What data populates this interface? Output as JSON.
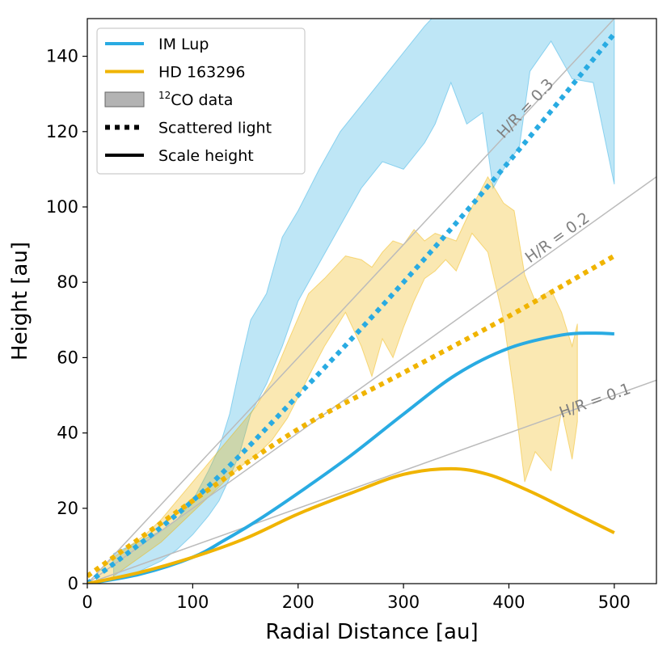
{
  "chart_data": {
    "type": "line",
    "xlabel": "Radial Distance [au]",
    "ylabel": "Height [au]",
    "xlim": [
      0,
      540
    ],
    "ylim": [
      0,
      150
    ],
    "xticks": [
      0,
      100,
      200,
      300,
      400,
      500
    ],
    "yticks": [
      0,
      20,
      40,
      60,
      80,
      100,
      120,
      140
    ],
    "grid": false,
    "legend_position": "top-left",
    "colors": {
      "im_lup": "#29abe2",
      "hd163296": "#f0b400",
      "co_data": "#999999",
      "reference": "#bbbbbb",
      "reference_text": "#808080"
    },
    "legend": [
      {
        "label": "IM Lup",
        "style": "line",
        "color": "#29abe2"
      },
      {
        "label": "HD 163296",
        "style": "line",
        "color": "#f0b400"
      },
      {
        "sup": "12",
        "label": "CO data",
        "style": "patch",
        "color": "#999999"
      },
      {
        "label": "Scattered light",
        "style": "dotted",
        "color": "#000000"
      },
      {
        "label": "Scale height",
        "style": "line",
        "color": "#000000"
      }
    ],
    "reference_lines": [
      {
        "label": "H/R = 0.3",
        "slope": 0.3
      },
      {
        "label": "H/R = 0.2",
        "slope": 0.2
      },
      {
        "label": "H/R = 0.1",
        "slope": 0.1
      }
    ],
    "series": [
      {
        "name": "IM Lup",
        "kind": "scale_height",
        "color": "#29abe2",
        "x": [
          0,
          50,
          100,
          130,
          160,
          200,
          250,
          300,
          350,
          400,
          450,
          480,
          500
        ],
        "y": [
          0,
          2.5,
          7,
          11.5,
          16.5,
          24,
          34,
          45,
          55.5,
          62.5,
          66,
          66.5,
          66.3
        ]
      },
      {
        "name": "HD 163296",
        "kind": "scale_height",
        "color": "#f0b400",
        "x": [
          0,
          50,
          100,
          150,
          200,
          250,
          300,
          345,
          380,
          420,
          460,
          500
        ],
        "y": [
          0,
          3,
          7,
          12,
          18.5,
          24,
          29,
          30.5,
          29,
          24.5,
          19,
          13.5
        ]
      },
      {
        "name": "IM Lup",
        "kind": "scattered_light",
        "color": "#29abe2",
        "x": [
          0,
          100,
          200,
          300,
          400,
          500
        ],
        "y": [
          0,
          22,
          50,
          80,
          112,
          146
        ]
      },
      {
        "name": "HD 163296",
        "kind": "scattered_light",
        "color": "#f0b400",
        "x": [
          0,
          100,
          200,
          300,
          400,
          500
        ],
        "y": [
          2,
          22,
          41,
          56,
          71,
          87
        ]
      },
      {
        "name": "IM Lup",
        "kind": "co_band",
        "color": "#29abe2",
        "x": [
          25,
          40,
          55,
          70,
          85,
          100,
          115,
          125,
          135,
          145,
          155,
          170,
          185,
          200,
          220,
          240,
          260,
          280,
          300,
          320,
          330,
          345,
          360,
          375,
          385,
          395,
          410,
          420,
          440,
          460,
          480,
          500
        ],
        "upper": [
          8,
          10,
          12,
          14,
          17,
          22,
          30,
          36,
          45,
          58,
          70,
          77,
          92,
          99,
          110,
          120,
          127,
          134,
          141,
          148,
          151,
          157,
          158,
          152,
          162,
          165,
          160,
          170,
          172,
          173,
          160,
          150
        ],
        "lower": [
          1,
          2,
          4,
          6,
          9,
          13,
          18,
          22,
          28,
          35,
          45,
          53,
          63,
          75,
          85,
          95,
          105,
          112,
          110,
          117,
          122,
          133,
          122,
          125,
          105,
          110,
          116,
          136,
          144,
          134,
          133,
          106
        ]
      },
      {
        "name": "HD 163296",
        "kind": "co_band",
        "color": "#f0b400",
        "x": [
          10,
          25,
          40,
          55,
          70,
          85,
          100,
          115,
          130,
          145,
          160,
          175,
          190,
          210,
          225,
          245,
          260,
          270,
          280,
          290,
          300,
          310,
          320,
          330,
          340,
          350,
          365,
          380,
          395,
          405,
          415,
          425,
          440,
          450,
          460,
          465
        ],
        "upper": [
          3,
          7,
          10,
          13,
          17,
          22,
          27,
          32,
          37,
          42,
          47,
          54,
          64,
          77,
          81,
          87,
          86,
          84,
          88,
          91,
          90,
          94,
          91,
          93,
          92,
          91,
          100,
          108,
          101,
          99,
          82,
          75,
          78,
          72,
          63,
          69
        ],
        "lower": [
          0,
          2,
          5,
          8,
          11,
          15,
          19,
          23,
          27,
          31,
          34,
          38,
          44,
          55,
          63,
          72,
          63,
          55,
          65,
          60,
          68,
          75,
          81,
          83,
          86,
          83,
          93,
          88,
          70,
          50,
          27,
          35,
          30,
          46,
          33,
          43
        ]
      }
    ]
  }
}
